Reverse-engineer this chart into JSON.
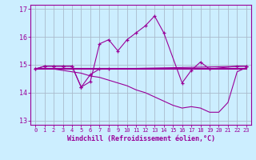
{
  "xlabel": "Windchill (Refroidissement éolien,°C)",
  "bg_color": "#cceeff",
  "line_color": "#990099",
  "grid_color": "#aabbcc",
  "x_hours": [
    0,
    1,
    2,
    3,
    4,
    5,
    6,
    7,
    8,
    9,
    10,
    11,
    12,
    13,
    14,
    15,
    16,
    17,
    18,
    19,
    20,
    21,
    22,
    23
  ],
  "series1_y": [
    14.85,
    14.95,
    14.95,
    14.95,
    14.95,
    14.2,
    14.4,
    15.75,
    15.9,
    15.5,
    15.9,
    16.15,
    16.4,
    16.75,
    16.15,
    14.35,
    14.8,
    15.1,
    14.85,
    14.95,
    14.95
  ],
  "series1_x": [
    0,
    1,
    2,
    3,
    4,
    5,
    6,
    7,
    8,
    9,
    10,
    11,
    12,
    13,
    14,
    16,
    17,
    18,
    19,
    22,
    23
  ],
  "series2_x": [
    0,
    23
  ],
  "series2_y": [
    14.85,
    14.85
  ],
  "series3_x": [
    0,
    1,
    2,
    3,
    4,
    5,
    6,
    7,
    8,
    23
  ],
  "series3_y": [
    14.85,
    14.95,
    14.95,
    14.95,
    14.95,
    14.2,
    14.65,
    14.85,
    14.85,
    14.95
  ],
  "series4_x": [
    0,
    1,
    2,
    3,
    4,
    5,
    6,
    7,
    8,
    9,
    10,
    11,
    12,
    13,
    14,
    15,
    16,
    17,
    18,
    19,
    20,
    21,
    22,
    23
  ],
  "series4_y": [
    14.85,
    14.85,
    14.85,
    14.8,
    14.75,
    14.7,
    14.6,
    14.55,
    14.45,
    14.35,
    14.25,
    14.1,
    14.0,
    13.85,
    13.7,
    13.55,
    13.45,
    13.5,
    13.45,
    13.3,
    13.3,
    13.65,
    14.75,
    14.9
  ],
  "ylim": [
    12.85,
    17.15
  ],
  "xlim": [
    -0.5,
    23.5
  ],
  "yticks": [
    13,
    14,
    15,
    16,
    17
  ],
  "xticks": [
    0,
    1,
    2,
    3,
    4,
    5,
    6,
    7,
    8,
    9,
    10,
    11,
    12,
    13,
    14,
    15,
    16,
    17,
    18,
    19,
    20,
    21,
    22,
    23
  ]
}
